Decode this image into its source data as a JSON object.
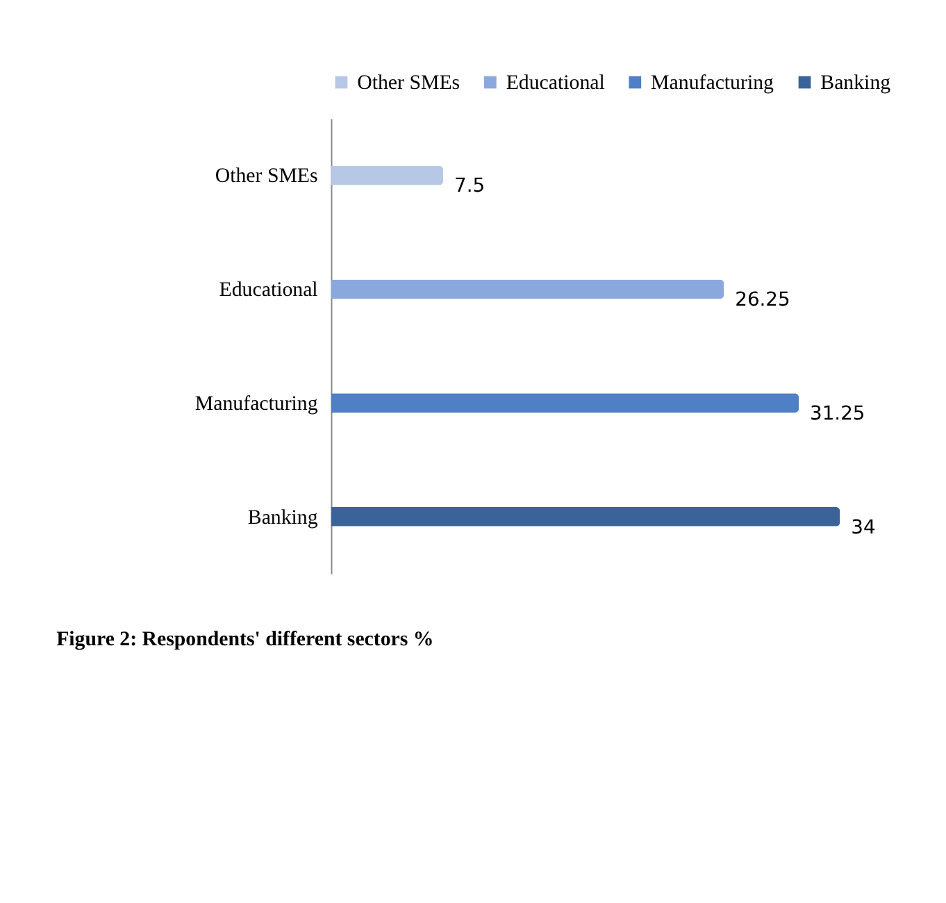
{
  "chart_data": {
    "type": "bar",
    "orientation": "horizontal",
    "categories": [
      "Other SMEs",
      "Educational",
      "Manufacturing",
      "Banking"
    ],
    "series": [
      {
        "name": "Other SMEs",
        "color": "#b7c7e6",
        "values": [
          7.5,
          null,
          null,
          null
        ]
      },
      {
        "name": "Educational",
        "color": "#8aa8dc",
        "values": [
          null,
          26.25,
          null,
          null
        ]
      },
      {
        "name": "Manufacturing",
        "color": "#4f7fc4",
        "values": [
          null,
          null,
          31.25,
          null
        ]
      },
      {
        "name": "Banking",
        "color": "#3a6399",
        "values": [
          null,
          null,
          null,
          34
        ]
      }
    ],
    "data_labels": true,
    "legend": "top",
    "annotations": [
      "Figure 2: Respondents' different sectors %"
    ]
  }
}
